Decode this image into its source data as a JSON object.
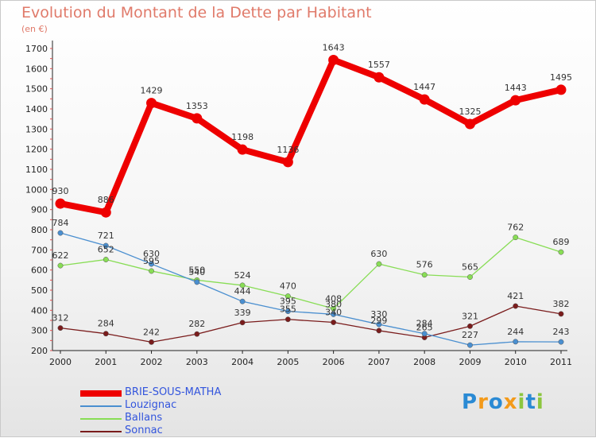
{
  "title": "Evolution du Montant de la Dette par Habitant",
  "subtitle": "(en €)",
  "logo": {
    "letters": [
      {
        "ch": "P",
        "color": "#2a8ad4"
      },
      {
        "ch": "r",
        "color": "#f39a1a"
      },
      {
        "ch": "o",
        "color": "#2a8ad4"
      },
      {
        "ch": "x",
        "color": "#f39a1a"
      },
      {
        "ch": "i",
        "color": "#8cc63f"
      },
      {
        "ch": "t",
        "color": "#2a8ad4"
      },
      {
        "ch": "i",
        "color": "#8cc63f"
      }
    ]
  },
  "chart_data": {
    "type": "line",
    "title": "Evolution du Montant de la Dette par Habitant",
    "ylabel": "(en €)",
    "xlabel": "",
    "x": [
      "2000",
      "2001",
      "2002",
      "2003",
      "2004",
      "2005",
      "2006",
      "2007",
      "2008",
      "2009",
      "2010",
      "2011"
    ],
    "ylim": [
      200,
      1700
    ],
    "yticks": [
      200,
      300,
      400,
      500,
      600,
      700,
      800,
      900,
      1000,
      1100,
      1200,
      1300,
      1400,
      1500,
      1600,
      1700
    ],
    "grid": false,
    "legend_position": "bottom-left",
    "series": [
      {
        "name": "BRIE-SOUS-MATHA",
        "color": "#ee0000",
        "values": [
          930,
          886,
          1429,
          1353,
          1198,
          1136,
          1643,
          1557,
          1447,
          1325,
          1443,
          1495
        ]
      },
      {
        "name": "Louzignac",
        "color": "#4a8fd0",
        "values": [
          784,
          721,
          630,
          540,
          444,
          395,
          380,
          330,
          284,
          227,
          244,
          243
        ]
      },
      {
        "name": "Ballans",
        "color": "#88dd55",
        "values": [
          622,
          652,
          595,
          550,
          524,
          470,
          408,
          630,
          576,
          565,
          762,
          689
        ]
      },
      {
        "name": "Sonnac",
        "color": "#7a1c1c",
        "values": [
          312,
          284,
          242,
          282,
          339,
          355,
          340,
          299,
          265,
          321,
          421,
          382
        ]
      }
    ]
  }
}
